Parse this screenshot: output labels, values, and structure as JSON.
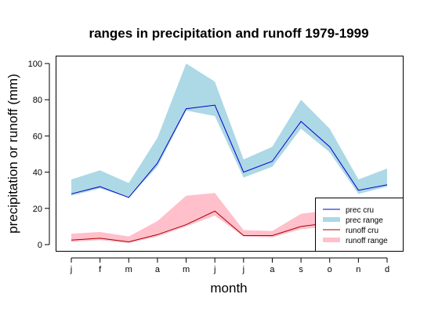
{
  "chart_data": {
    "type": "area",
    "title": "ranges in precipitation and runoff 1979-1999",
    "xlabel": "month",
    "ylabel": "precipitation or runoff (mm)",
    "categories": [
      "j",
      "f",
      "m",
      "a",
      "m",
      "j",
      "j",
      "a",
      "s",
      "o",
      "n",
      "d"
    ],
    "ylim": [
      0,
      100
    ],
    "yticks": [
      0,
      20,
      40,
      60,
      80,
      100
    ],
    "grid": false,
    "legend_position": "bottom-right",
    "series": [
      {
        "name": "prec cru",
        "kind": "line",
        "color": "#0000cc",
        "values": [
          28,
          32,
          26,
          45,
          75,
          77,
          40,
          46,
          68,
          54,
          30,
          33
        ]
      },
      {
        "name": "prec range",
        "kind": "band",
        "color": "#add8e6",
        "lower": [
          27,
          31,
          26,
          43,
          74,
          71,
          37,
          43,
          64,
          51,
          28,
          32
        ],
        "upper": [
          36,
          41,
          34,
          59,
          100,
          90,
          47,
          54,
          80,
          64,
          36,
          42
        ]
      },
      {
        "name": "runoff cru",
        "kind": "line",
        "color": "#aa0000",
        "values": [
          2.5,
          3.5,
          1.5,
          5.5,
          11,
          18.5,
          5,
          5,
          10,
          12,
          11,
          12
        ]
      },
      {
        "name": "runoff range",
        "kind": "band",
        "color": "#ffc0cb",
        "lower": [
          1.5,
          2.5,
          0.8,
          4.5,
          10,
          16,
          4.5,
          4,
          8.5,
          10,
          10,
          11
        ],
        "upper": [
          6,
          7,
          4.5,
          13,
          27,
          28.5,
          8,
          7.5,
          17,
          19,
          16,
          16
        ]
      }
    ]
  }
}
